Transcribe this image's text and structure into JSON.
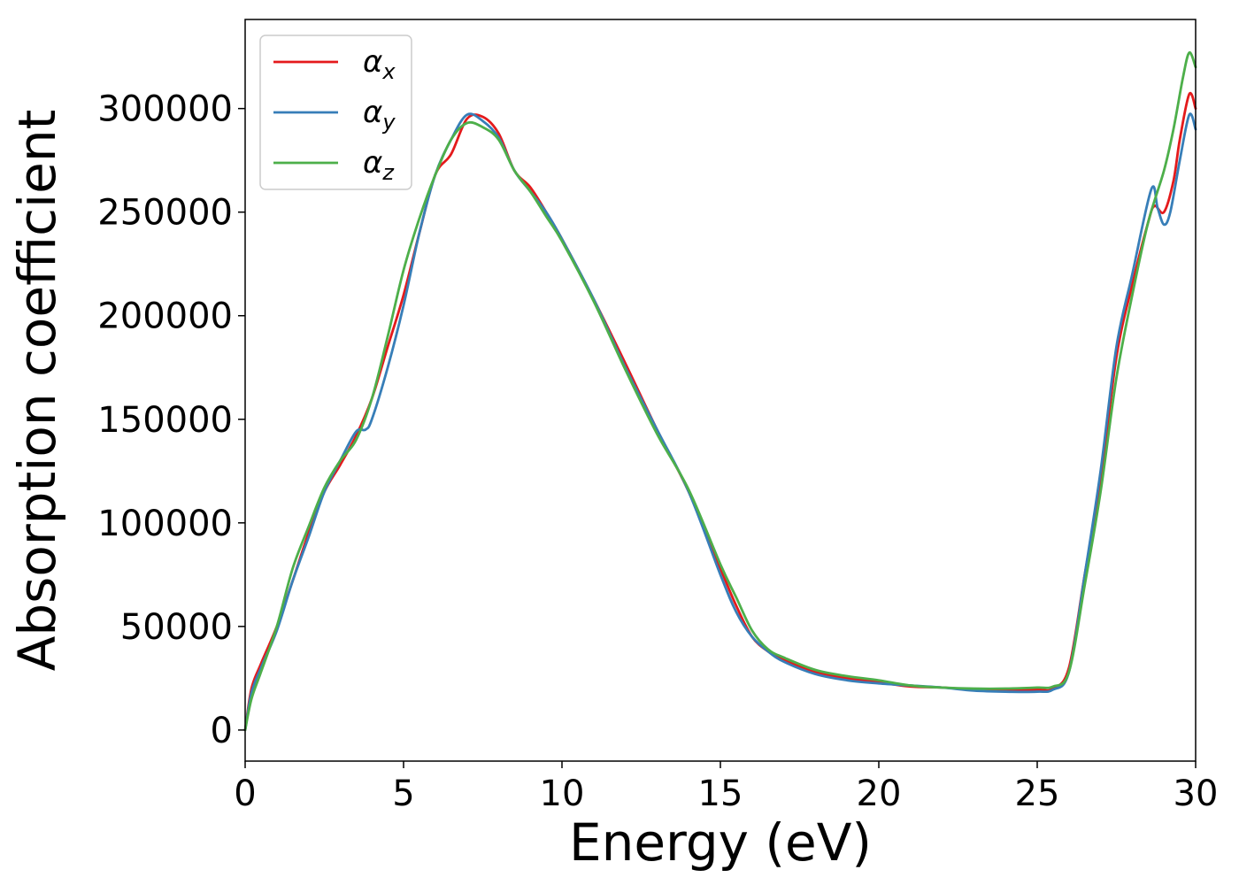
{
  "chart_data": {
    "type": "line",
    "title": "",
    "xlabel": "Energy (eV)",
    "ylabel": "Absorption coefficient",
    "xlim": [
      0,
      30
    ],
    "ylim": [
      -15000,
      343000
    ],
    "xticks": [
      0,
      5,
      10,
      15,
      20,
      25,
      30
    ],
    "yticks": [
      0,
      50000,
      100000,
      150000,
      200000,
      250000,
      300000
    ],
    "grid": false,
    "legend_position": "top-left",
    "series": [
      {
        "name": "α_x",
        "legend_main": "α",
        "legend_sub": "x",
        "color": "#e41a1c",
        "x": [
          0,
          0.2,
          0.5,
          1.0,
          1.5,
          2.0,
          2.5,
          3.0,
          3.5,
          4.0,
          4.5,
          5.0,
          5.5,
          6.0,
          6.5,
          7.0,
          7.5,
          8.0,
          8.5,
          9.0,
          9.5,
          10.0,
          11.0,
          12.0,
          13.0,
          14.0,
          15.0,
          15.5,
          16.0,
          16.5,
          17.0,
          18.0,
          19.0,
          20.0,
          21.0,
          22.0,
          23.0,
          24.0,
          25.0,
          25.5,
          26.0,
          26.5,
          27.0,
          27.5,
          28.0,
          28.5,
          28.7,
          29.0,
          29.3,
          29.5,
          29.8,
          30.0
        ],
        "y": [
          0,
          20000,
          32000,
          50000,
          72000,
          95000,
          115000,
          128000,
          142000,
          160000,
          185000,
          210000,
          240000,
          268000,
          278000,
          295000,
          296000,
          288000,
          270000,
          262000,
          250000,
          237000,
          208000,
          177000,
          145000,
          115000,
          78000,
          60000,
          45000,
          38000,
          34000,
          28000,
          25000,
          23000,
          21000,
          20500,
          19500,
          19000,
          19500,
          20000,
          30000,
          75000,
          120000,
          180000,
          215000,
          245000,
          253000,
          250000,
          265000,
          285000,
          307000,
          300000
        ]
      },
      {
        "name": "α_y",
        "legend_main": "α",
        "legend_sub": "y",
        "color": "#377eb8",
        "x": [
          0,
          0.2,
          0.5,
          1.0,
          1.5,
          2.0,
          2.5,
          3.0,
          3.5,
          3.8,
          4.0,
          4.5,
          5.0,
          5.5,
          6.0,
          6.5,
          7.0,
          7.5,
          8.0,
          8.5,
          9.0,
          9.5,
          10.0,
          11.0,
          12.0,
          13.0,
          14.0,
          15.0,
          15.5,
          16.0,
          16.5,
          17.0,
          18.0,
          19.0,
          20.0,
          21.0,
          22.0,
          23.0,
          24.0,
          25.0,
          25.5,
          26.0,
          26.5,
          27.0,
          27.5,
          28.0,
          28.6,
          28.8,
          29.0,
          29.2,
          29.5,
          29.8,
          30.0
        ],
        "y": [
          0,
          18000,
          30000,
          48000,
          72000,
          93000,
          115000,
          130000,
          144000,
          145000,
          150000,
          175000,
          205000,
          240000,
          268000,
          285000,
          297000,
          294000,
          286000,
          270000,
          260000,
          250000,
          237000,
          208000,
          175000,
          145000,
          115000,
          75000,
          57000,
          45000,
          38000,
          33000,
          27000,
          24000,
          22500,
          21500,
          20500,
          19000,
          18500,
          18500,
          19500,
          28000,
          75000,
          125000,
          185000,
          220000,
          261000,
          252000,
          244000,
          250000,
          275000,
          297000,
          290000
        ]
      },
      {
        "name": "α_z",
        "legend_main": "α",
        "legend_sub": "z",
        "color": "#4daf4a",
        "x": [
          0,
          0.2,
          0.5,
          1.0,
          1.5,
          2.0,
          2.5,
          3.0,
          3.5,
          4.0,
          4.5,
          5.0,
          5.5,
          6.0,
          6.5,
          7.0,
          7.5,
          8.0,
          8.5,
          9.0,
          9.5,
          10.0,
          11.0,
          12.0,
          13.0,
          14.0,
          15.0,
          15.5,
          16.0,
          16.5,
          17.0,
          18.0,
          19.0,
          20.0,
          21.0,
          22.0,
          23.0,
          24.0,
          25.0,
          25.5,
          26.0,
          26.5,
          27.0,
          27.5,
          28.0,
          28.5,
          29.0,
          29.3,
          29.6,
          29.8,
          30.0
        ],
        "y": [
          0,
          15000,
          28000,
          50000,
          78000,
          98000,
          117000,
          130000,
          140000,
          160000,
          190000,
          222000,
          247000,
          268000,
          285000,
          293000,
          291000,
          285000,
          270000,
          260000,
          248000,
          236000,
          207000,
          174000,
          143000,
          116000,
          80000,
          64000,
          48000,
          39000,
          35000,
          29000,
          26000,
          24000,
          21500,
          20500,
          20000,
          20000,
          20500,
          21000,
          28000,
          70000,
          115000,
          170000,
          210000,
          245000,
          270000,
          290000,
          315000,
          327000,
          320000
        ]
      }
    ]
  }
}
